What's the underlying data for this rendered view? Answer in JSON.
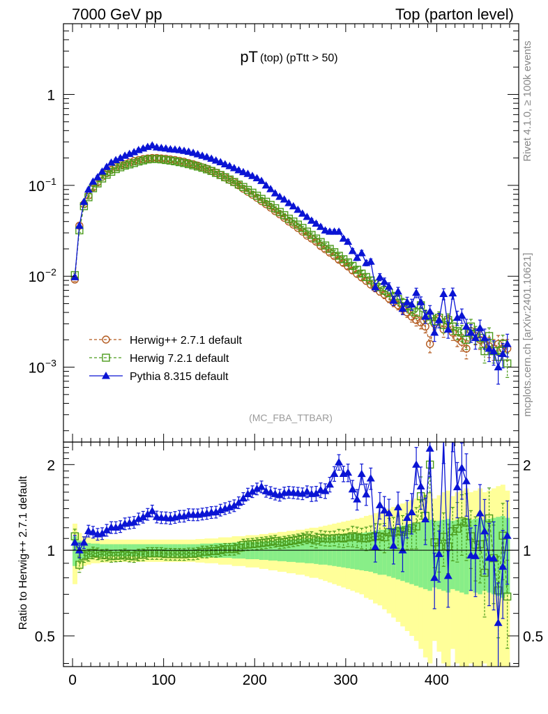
{
  "header": {
    "left": "7000 GeV pp",
    "right": "Top (parton level)"
  },
  "side_text": {
    "rivet": "Rivet 4.1.0, ≥ 100k events",
    "url": "mcplots.cern.ch [arXiv:2401.10621]"
  },
  "colors": {
    "herwigpp": "#b35a1f",
    "herwig7": "#4a9a1a",
    "pythia": "#0a14d4",
    "band_yellow": "#ffff99",
    "band_green": "#88ee88"
  },
  "chart_data": [
    {
      "type": "line",
      "title": "pT",
      "title_sub": "(top) (pTtt > 50)",
      "watermark": "(MC_FBA_TTBAR)",
      "yscale": "log",
      "ylim": [
        0.00015,
        6
      ],
      "xlim": [
        -10,
        490
      ],
      "y_tick_labels": [
        {
          "v": 1,
          "base": "1",
          "exp": ""
        },
        {
          "v": 0.1,
          "base": "10",
          "exp": "−1"
        },
        {
          "v": 0.01,
          "base": "10",
          "exp": "−2"
        },
        {
          "v": 0.001,
          "base": "10",
          "exp": "−3"
        }
      ],
      "x": [
        2.5,
        7.5,
        12.5,
        17.5,
        22.5,
        27.5,
        32.5,
        37.5,
        42.5,
        47.5,
        52.5,
        57.5,
        62.5,
        67.5,
        72.5,
        77.5,
        82.5,
        87.5,
        92.5,
        97.5,
        102.5,
        107.5,
        112.5,
        117.5,
        122.5,
        127.5,
        132.5,
        137.5,
        142.5,
        147.5,
        152.5,
        157.5,
        162.5,
        167.5,
        172.5,
        177.5,
        182.5,
        187.5,
        192.5,
        197.5,
        202.5,
        207.5,
        212.5,
        217.5,
        222.5,
        227.5,
        232.5,
        237.5,
        242.5,
        247.5,
        252.5,
        257.5,
        262.5,
        267.5,
        272.5,
        277.5,
        282.5,
        287.5,
        292.5,
        297.5,
        302.5,
        307.5,
        312.5,
        317.5,
        322.5,
        327.5,
        332.5,
        337.5,
        342.5,
        347.5,
        352.5,
        357.5,
        362.5,
        367.5,
        372.5,
        377.5,
        382.5,
        387.5,
        392.5,
        397.5,
        402.5,
        407.5,
        412.5,
        417.5,
        422.5,
        427.5,
        432.5,
        437.5,
        442.5,
        447.5,
        452.5,
        457.5,
        462.5,
        467.5,
        472.5,
        477.5
      ],
      "series": [
        {
          "name": "Herwig++ 2.7.1 default",
          "marker": "circle",
          "values": [
            0.0092,
            0.036,
            0.062,
            0.077,
            0.095,
            0.108,
            0.124,
            0.136,
            0.148,
            0.158,
            0.165,
            0.171,
            0.178,
            0.185,
            0.19,
            0.195,
            0.198,
            0.2,
            0.2,
            0.198,
            0.196,
            0.193,
            0.19,
            0.186,
            0.182,
            0.176,
            0.171,
            0.165,
            0.158,
            0.152,
            0.145,
            0.138,
            0.13,
            0.122,
            0.115,
            0.108,
            0.1,
            0.092,
            0.085,
            0.079,
            0.073,
            0.067,
            0.062,
            0.057,
            0.052,
            0.048,
            0.044,
            0.04,
            0.037,
            0.034,
            0.031,
            0.028,
            0.026,
            0.024,
            0.0215,
            0.0198,
            0.0182,
            0.0167,
            0.0152,
            0.014,
            0.0128,
            0.0116,
            0.0106,
            0.0097,
            0.0089,
            0.0081,
            0.0074,
            0.0068,
            0.0063,
            0.0057,
            0.0052,
            0.0048,
            0.0044,
            0.004,
            0.0036,
            0.0033,
            0.0031,
            0.0028,
            0.0018,
            0.003,
            0.0034,
            0.0026,
            0.0032,
            0.0024,
            0.0021,
            0.0019,
            0.0016,
            0.0025,
            0.0022,
            0.002,
            0.0018,
            0.0017,
            0.0016,
            0.0018,
            0.0016,
            0.0016
          ],
          "errors": [
            0.05,
            0.05,
            0.04,
            0.04,
            0.04,
            0.04,
            0.04,
            0.04,
            0.04,
            0.04,
            0.04,
            0.04,
            0.04,
            0.04,
            0.04,
            0.04,
            0.04,
            0.04,
            0.04,
            0.04,
            0.04,
            0.04,
            0.04,
            0.04,
            0.04,
            0.04,
            0.04,
            0.04,
            0.04,
            0.04,
            0.04,
            0.04,
            0.04,
            0.04,
            0.04,
            0.04,
            0.04,
            0.04,
            0.04,
            0.04,
            0.04,
            0.04,
            0.04,
            0.04,
            0.04,
            0.04,
            0.04,
            0.04,
            0.04,
            0.04,
            0.04,
            0.04,
            0.05,
            0.05,
            0.05,
            0.05,
            0.05,
            0.05,
            0.06,
            0.06,
            0.06,
            0.07,
            0.07,
            0.07,
            0.08,
            0.08,
            0.09,
            0.09,
            0.1,
            0.1,
            0.11,
            0.11,
            0.12,
            0.12,
            0.13,
            0.14,
            0.15,
            0.15,
            0.2,
            0.15,
            0.15,
            0.18,
            0.16,
            0.18,
            0.2,
            0.21,
            0.23,
            0.18,
            0.2,
            0.22,
            0.24,
            0.25,
            0.26,
            0.24,
            0.26,
            0.26
          ]
        },
        {
          "name": "Herwig 7.2.1 default",
          "marker": "square",
          "values": [
            0.0103,
            0.032,
            0.059,
            0.074,
            0.093,
            0.105,
            0.119,
            0.131,
            0.141,
            0.151,
            0.158,
            0.165,
            0.17,
            0.176,
            0.183,
            0.188,
            0.193,
            0.195,
            0.195,
            0.193,
            0.19,
            0.187,
            0.184,
            0.18,
            0.176,
            0.171,
            0.166,
            0.161,
            0.156,
            0.15,
            0.144,
            0.137,
            0.13,
            0.123,
            0.116,
            0.109,
            0.102,
            0.096,
            0.089,
            0.083,
            0.077,
            0.071,
            0.066,
            0.061,
            0.056,
            0.051,
            0.047,
            0.043,
            0.04,
            0.037,
            0.034,
            0.031,
            0.0285,
            0.026,
            0.0238,
            0.0218,
            0.02,
            0.0184,
            0.0168,
            0.0154,
            0.0142,
            0.013,
            0.0118,
            0.0107,
            0.0098,
            0.009,
            0.0083,
            0.0076,
            0.007,
            0.0066,
            0.006,
            0.0056,
            0.0051,
            0.0047,
            0.0043,
            0.004,
            0.0048,
            0.0037,
            0.0036,
            0.0032,
            0.0035,
            0.0029,
            0.0033,
            0.0028,
            0.0025,
            0.0024,
            0.002,
            0.0028,
            0.0023,
            0.0021,
            0.0015,
            0.0022,
            0.0015,
            0.0013,
            0.0018,
            0.0011
          ],
          "errors": [
            0.05,
            0.05,
            0.04,
            0.04,
            0.04,
            0.04,
            0.04,
            0.04,
            0.04,
            0.04,
            0.04,
            0.04,
            0.04,
            0.04,
            0.04,
            0.04,
            0.04,
            0.04,
            0.04,
            0.04,
            0.04,
            0.04,
            0.04,
            0.04,
            0.04,
            0.04,
            0.04,
            0.04,
            0.04,
            0.04,
            0.04,
            0.04,
            0.04,
            0.04,
            0.04,
            0.04,
            0.04,
            0.04,
            0.04,
            0.04,
            0.04,
            0.04,
            0.04,
            0.04,
            0.04,
            0.04,
            0.04,
            0.04,
            0.04,
            0.04,
            0.04,
            0.04,
            0.05,
            0.05,
            0.05,
            0.05,
            0.05,
            0.05,
            0.06,
            0.06,
            0.06,
            0.07,
            0.07,
            0.07,
            0.08,
            0.08,
            0.09,
            0.09,
            0.1,
            0.1,
            0.11,
            0.11,
            0.12,
            0.12,
            0.13,
            0.14,
            0.14,
            0.15,
            0.16,
            0.16,
            0.16,
            0.18,
            0.17,
            0.18,
            0.2,
            0.2,
            0.22,
            0.2,
            0.22,
            0.23,
            0.26,
            0.23,
            0.26,
            0.28,
            0.25,
            0.3
          ]
        },
        {
          "name": "Pythia 8.315 default",
          "marker": "triangle",
          "values": [
            0.0098,
            0.036,
            0.066,
            0.09,
            0.11,
            0.123,
            0.142,
            0.16,
            0.178,
            0.19,
            0.2,
            0.212,
            0.222,
            0.232,
            0.245,
            0.255,
            0.265,
            0.275,
            0.262,
            0.258,
            0.255,
            0.25,
            0.248,
            0.245,
            0.24,
            0.235,
            0.228,
            0.22,
            0.212,
            0.205,
            0.197,
            0.188,
            0.18,
            0.171,
            0.163,
            0.155,
            0.147,
            0.14,
            0.134,
            0.127,
            0.12,
            0.112,
            0.1,
            0.091,
            0.082,
            0.075,
            0.07,
            0.064,
            0.059,
            0.054,
            0.049,
            0.045,
            0.041,
            0.038,
            0.035,
            0.032,
            0.031,
            0.031,
            0.031,
            0.026,
            0.024,
            0.019,
            0.016,
            0.018,
            0.014,
            0.0145,
            0.0076,
            0.0098,
            0.0087,
            0.0077,
            0.0054,
            0.0068,
            0.0044,
            0.0052,
            0.0049,
            0.0066,
            0.0052,
            0.0036,
            0.0041,
            0.0024,
            0.0033,
            0.0064,
            0.0026,
            0.0065,
            0.0035,
            0.0037,
            0.0028,
            0.0024,
            0.0021,
            0.0027,
            0.0021,
            0.0016,
            0.0015,
            0.001,
            0.0014,
            0.0018
          ],
          "errors": [
            0.05,
            0.05,
            0.04,
            0.04,
            0.04,
            0.04,
            0.04,
            0.04,
            0.04,
            0.04,
            0.04,
            0.04,
            0.04,
            0.04,
            0.04,
            0.04,
            0.04,
            0.04,
            0.04,
            0.04,
            0.04,
            0.04,
            0.04,
            0.04,
            0.04,
            0.04,
            0.04,
            0.04,
            0.04,
            0.04,
            0.04,
            0.04,
            0.04,
            0.04,
            0.04,
            0.04,
            0.04,
            0.04,
            0.04,
            0.04,
            0.04,
            0.04,
            0.04,
            0.04,
            0.04,
            0.04,
            0.04,
            0.04,
            0.04,
            0.04,
            0.04,
            0.04,
            0.05,
            0.05,
            0.05,
            0.05,
            0.05,
            0.05,
            0.05,
            0.05,
            0.06,
            0.06,
            0.07,
            0.07,
            0.07,
            0.07,
            0.1,
            0.09,
            0.1,
            0.1,
            0.12,
            0.11,
            0.14,
            0.13,
            0.14,
            0.12,
            0.14,
            0.16,
            0.16,
            0.2,
            0.18,
            0.14,
            0.2,
            0.14,
            0.18,
            0.18,
            0.2,
            0.22,
            0.25,
            0.22,
            0.25,
            0.28,
            0.3,
            0.35,
            0.3,
            0.28
          ]
        }
      ]
    },
    {
      "type": "line",
      "ylabel": "Ratio to Herwig++ 2.7.1 default",
      "yscale": "log",
      "ylim": [
        0.39,
        2.4
      ],
      "xlim": [
        -10,
        490
      ],
      "x_ticks": [
        0,
        100,
        200,
        300,
        400
      ],
      "y_ticks": [
        0.5,
        1,
        2
      ],
      "bands": {
        "edges": [
          0,
          5,
          10,
          15,
          20,
          25,
          30,
          35,
          40,
          45,
          50,
          55,
          60,
          65,
          70,
          75,
          80,
          85,
          90,
          95,
          100,
          105,
          110,
          115,
          120,
          125,
          130,
          135,
          140,
          145,
          150,
          155,
          160,
          165,
          170,
          175,
          180,
          185,
          190,
          195,
          200,
          205,
          210,
          215,
          220,
          225,
          230,
          235,
          240,
          245,
          250,
          255,
          260,
          265,
          270,
          275,
          280,
          285,
          290,
          295,
          300,
          305,
          310,
          315,
          320,
          325,
          330,
          335,
          340,
          345,
          350,
          355,
          360,
          365,
          370,
          375,
          380,
          385,
          390,
          395,
          400,
          405,
          410,
          415,
          420,
          425,
          430,
          435,
          440,
          445,
          450,
          455,
          460,
          465,
          470,
          475,
          480
        ],
        "yellow_half": [
          0.24,
          0.15,
          0.12,
          0.11,
          0.1,
          0.1,
          0.095,
          0.095,
          0.09,
          0.09,
          0.09,
          0.09,
          0.09,
          0.09,
          0.09,
          0.09,
          0.09,
          0.09,
          0.09,
          0.09,
          0.09,
          0.09,
          0.09,
          0.09,
          0.09,
          0.09,
          0.09,
          0.095,
          0.095,
          0.1,
          0.1,
          0.1,
          0.11,
          0.11,
          0.11,
          0.12,
          0.12,
          0.12,
          0.13,
          0.13,
          0.13,
          0.14,
          0.14,
          0.15,
          0.15,
          0.16,
          0.16,
          0.17,
          0.17,
          0.18,
          0.18,
          0.19,
          0.2,
          0.2,
          0.21,
          0.22,
          0.23,
          0.24,
          0.25,
          0.26,
          0.27,
          0.28,
          0.29,
          0.3,
          0.32,
          0.33,
          0.35,
          0.36,
          0.38,
          0.4,
          0.42,
          0.44,
          0.46,
          0.48,
          0.5,
          0.52,
          0.55,
          0.58,
          0.6,
          0.52,
          0.56,
          0.6,
          0.62,
          0.55,
          0.6,
          0.62,
          0.65,
          0.6,
          0.62,
          0.65,
          0.6,
          0.62,
          0.65,
          0.68,
          0.7,
          0.62
        ],
        "green_half": [
          0.12,
          0.08,
          0.065,
          0.06,
          0.055,
          0.055,
          0.05,
          0.05,
          0.05,
          0.05,
          0.05,
          0.05,
          0.05,
          0.05,
          0.05,
          0.05,
          0.05,
          0.05,
          0.05,
          0.05,
          0.05,
          0.05,
          0.05,
          0.05,
          0.05,
          0.05,
          0.05,
          0.05,
          0.055,
          0.055,
          0.055,
          0.06,
          0.06,
          0.06,
          0.06,
          0.065,
          0.065,
          0.065,
          0.07,
          0.07,
          0.07,
          0.075,
          0.075,
          0.08,
          0.08,
          0.085,
          0.085,
          0.09,
          0.09,
          0.095,
          0.095,
          0.1,
          0.1,
          0.105,
          0.11,
          0.11,
          0.115,
          0.12,
          0.125,
          0.13,
          0.135,
          0.14,
          0.145,
          0.15,
          0.155,
          0.16,
          0.17,
          0.18,
          0.18,
          0.19,
          0.2,
          0.21,
          0.22,
          0.23,
          0.24,
          0.25,
          0.26,
          0.27,
          0.28,
          0.26,
          0.27,
          0.28,
          0.29,
          0.27,
          0.28,
          0.29,
          0.3,
          0.28,
          0.29,
          0.3,
          0.28,
          0.29,
          0.3,
          0.31,
          0.32,
          0.3
        ]
      }
    }
  ]
}
